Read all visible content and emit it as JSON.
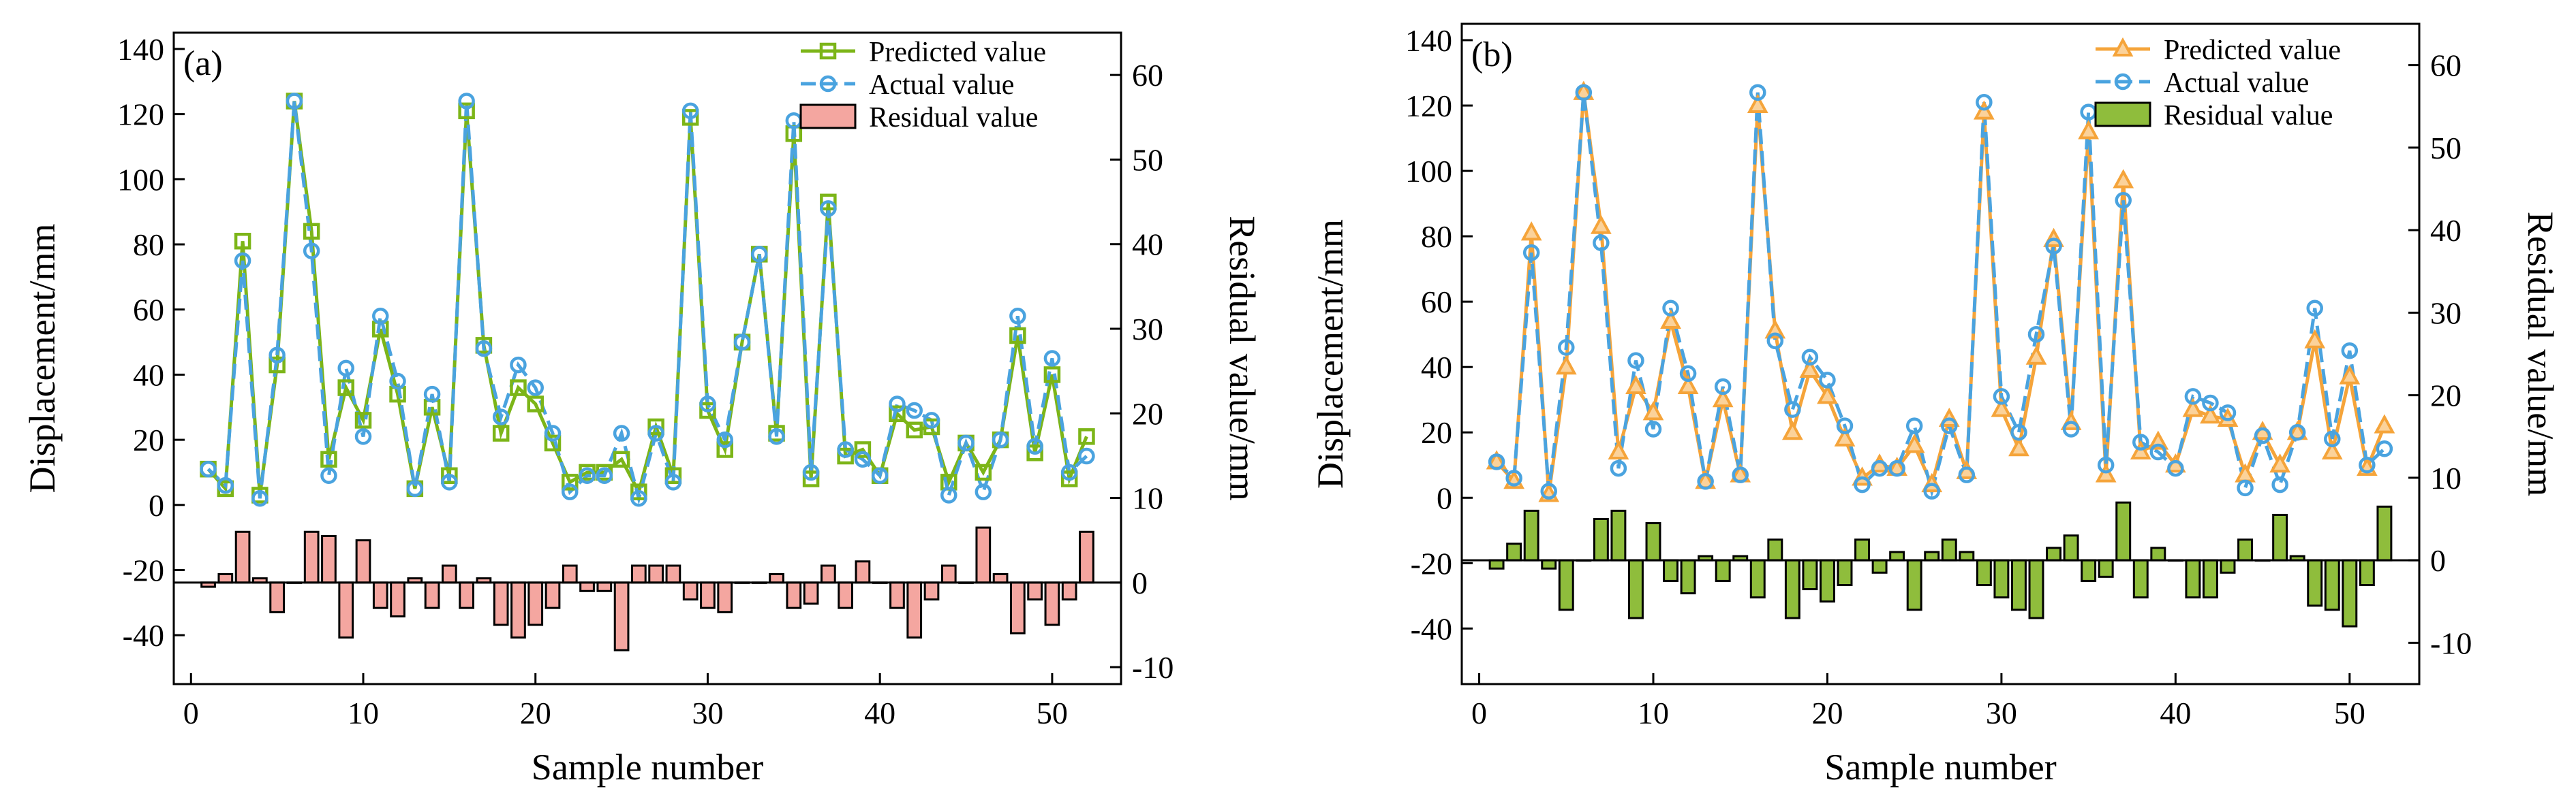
{
  "chart_data": [
    {
      "type": "line+bar",
      "panel_label": "(a)",
      "xlabel": "Sample number",
      "ylabel": "Displacement/mm",
      "y2label": "Residual value/mm",
      "xlim": [
        -1,
        54
      ],
      "ylim": [
        -55,
        145
      ],
      "y2lim": [
        -12,
        65
      ],
      "x_ticks": [
        0,
        10,
        20,
        30,
        40,
        50
      ],
      "y_ticks": [
        -40,
        -20,
        0,
        20,
        40,
        60,
        80,
        100,
        120,
        140
      ],
      "y2_ticks": [
        -10,
        0,
        10,
        20,
        30,
        40,
        50,
        60
      ],
      "legend_position": "top-right",
      "colors": {
        "predicted": "#7cb518",
        "actual": "#4aa3df",
        "residual_fill": "#f4a6a0",
        "bar_edge": "#000000",
        "zero_line": "#000000"
      },
      "x": [
        1,
        2,
        3,
        4,
        5,
        6,
        7,
        8,
        9,
        10,
        11,
        12,
        13,
        14,
        15,
        16,
        17,
        18,
        19,
        20,
        21,
        22,
        23,
        24,
        25,
        26,
        27,
        28,
        29,
        30,
        31,
        32,
        33,
        34,
        35,
        36,
        37,
        38,
        39,
        40,
        41,
        42,
        43,
        44,
        45,
        46,
        47,
        48,
        49,
        50,
        51,
        52
      ],
      "series": [
        {
          "name": "Predicted value",
          "kind": "line",
          "marker": "square",
          "values": [
            11,
            5,
            81,
            3,
            43,
            124,
            84,
            14,
            36,
            26,
            54,
            34,
            5,
            30,
            9,
            121,
            49,
            22,
            36,
            31,
            19,
            7,
            10,
            10,
            14,
            4,
            24,
            9,
            119,
            29,
            17,
            50,
            77,
            22,
            114,
            8,
            93,
            15,
            17,
            9,
            28,
            23,
            24,
            7,
            19,
            10,
            20,
            52,
            16,
            40,
            8,
            21
          ]
        },
        {
          "name": "Actual value",
          "kind": "line",
          "marker": "circle",
          "values": [
            11,
            6,
            75,
            2,
            46,
            124,
            78,
            9,
            42,
            21,
            58,
            38,
            5,
            34,
            7,
            124,
            48,
            27,
            43,
            36,
            22,
            4,
            9,
            9,
            22,
            2,
            22,
            7,
            121,
            31,
            20,
            50,
            77,
            21,
            118,
            10,
            91,
            17,
            14,
            9,
            31,
            29,
            26,
            3,
            19,
            4,
            20,
            58,
            18,
            45,
            10,
            15
          ]
        },
        {
          "name": "Residual value",
          "kind": "bar",
          "axis": "y2",
          "values": [
            -0.5,
            1,
            6,
            0.5,
            -3.5,
            0,
            6,
            5.5,
            -6.5,
            5,
            -3,
            -4,
            0.5,
            -3,
            2,
            -3,
            0.5,
            -5,
            -6.5,
            -5,
            -3,
            2,
            -1,
            -1,
            -8,
            2,
            2,
            2,
            -2,
            -3,
            -3.5,
            0,
            0,
            1,
            -3,
            -2.5,
            2,
            -3,
            2.5,
            0,
            -3,
            -6.5,
            -2,
            2,
            0,
            6.5,
            1,
            -6,
            -2,
            -5,
            -2,
            6
          ]
        }
      ]
    },
    {
      "type": "line+bar",
      "panel_label": "(b)",
      "xlabel": "Sample number",
      "ylabel": "Displacement/mm",
      "y2label": "Residual value/mm",
      "xlim": [
        -1,
        54
      ],
      "ylim": [
        -57,
        145
      ],
      "y2lim": [
        -15,
        65
      ],
      "x_ticks": [
        0,
        10,
        20,
        30,
        40,
        50
      ],
      "y_ticks": [
        -40,
        -20,
        0,
        20,
        40,
        60,
        80,
        100,
        120,
        140
      ],
      "y2_ticks": [
        -10,
        0,
        10,
        20,
        30,
        40,
        50,
        60
      ],
      "legend_position": "top-right",
      "colors": {
        "predicted": "#f5a43a",
        "actual": "#4aa3df",
        "residual_fill": "#8fbd3c",
        "bar_edge": "#000000",
        "zero_line": "#000000"
      },
      "x": [
        1,
        2,
        3,
        4,
        5,
        6,
        7,
        8,
        9,
        10,
        11,
        12,
        13,
        14,
        15,
        16,
        17,
        18,
        19,
        20,
        21,
        22,
        23,
        24,
        25,
        26,
        27,
        28,
        29,
        30,
        31,
        32,
        33,
        34,
        35,
        36,
        37,
        38,
        39,
        40,
        41,
        42,
        43,
        44,
        45,
        46,
        47,
        48,
        49,
        50,
        51,
        52
      ],
      "series": [
        {
          "name": "Predicted value",
          "kind": "line",
          "marker": "triangle",
          "values": [
            11,
            5,
            81,
            1,
            40,
            124,
            83,
            14,
            34,
            26,
            54,
            34,
            5,
            30,
            7,
            120,
            51,
            20,
            39,
            31,
            18,
            6,
            10,
            9,
            16,
            4,
            24,
            8,
            118,
            27,
            15,
            43,
            79,
            23,
            112,
            7,
            97,
            14,
            17,
            10,
            27,
            25,
            24,
            7,
            20,
            10,
            20,
            48,
            14,
            37,
            9,
            22
          ]
        },
        {
          "name": "Actual value",
          "kind": "line",
          "marker": "circle",
          "values": [
            11,
            6,
            75,
            2,
            46,
            124,
            78,
            9,
            42,
            21,
            58,
            38,
            5,
            34,
            7,
            124,
            48,
            27,
            43,
            36,
            22,
            4,
            9,
            9,
            22,
            2,
            22,
            7,
            121,
            31,
            20,
            50,
            77,
            21,
            118,
            10,
            91,
            17,
            14,
            9,
            31,
            29,
            26,
            3,
            19,
            4,
            20,
            58,
            18,
            45,
            10,
            15
          ]
        },
        {
          "name": "Residual value",
          "kind": "bar",
          "axis": "y2",
          "values": [
            -1,
            2,
            6,
            -1,
            -6,
            0,
            5,
            6,
            -7,
            4.5,
            -2.5,
            -4,
            0.5,
            -2.5,
            0.5,
            -4.5,
            2.5,
            -7,
            -3.5,
            -5,
            -3,
            2.5,
            -1.5,
            1,
            -6,
            1,
            2.5,
            1,
            -3,
            -4.5,
            -6,
            -7,
            1.5,
            3,
            -2.5,
            -2,
            7,
            -4.5,
            1.5,
            0,
            -4.5,
            -4.5,
            -1.5,
            2.5,
            0,
            5.5,
            0.5,
            -5.5,
            -6,
            -8,
            -3,
            6.5
          ]
        }
      ]
    }
  ]
}
